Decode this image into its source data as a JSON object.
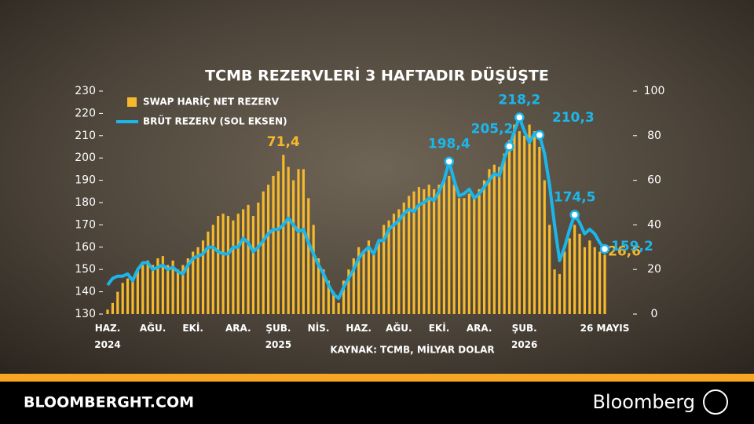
{
  "chart_data": {
    "type": "combo",
    "title": "TCMB REZERVLERİ 3 HAFTADIR DÜŞÜŞTE",
    "source": "KAYNAK: TCMB, MİLYAR DOLAR",
    "categories": [
      "HAZ.\n2024",
      null,
      null,
      null,
      null,
      null,
      null,
      null,
      null,
      "AĞU.",
      null,
      null,
      null,
      null,
      null,
      null,
      null,
      "EKİ.",
      null,
      null,
      null,
      null,
      null,
      null,
      null,
      null,
      "ARA.",
      null,
      null,
      null,
      null,
      null,
      null,
      null,
      "ŞUB.\n2025",
      null,
      null,
      null,
      null,
      null,
      null,
      null,
      "NİS.",
      null,
      null,
      null,
      null,
      null,
      null,
      null,
      "HAZ.",
      null,
      null,
      null,
      null,
      null,
      null,
      null,
      "AĞU.",
      null,
      null,
      null,
      null,
      null,
      null,
      null,
      "EKİ.",
      null,
      null,
      null,
      null,
      null,
      null,
      null,
      "ARA.",
      null,
      null,
      null,
      null,
      null,
      null,
      null,
      null,
      "ŞUB.\n2026",
      null,
      null,
      null,
      null,
      null,
      null,
      null,
      null,
      null,
      null,
      null,
      null,
      null,
      null,
      null,
      "26 MAYIS"
    ],
    "series": [
      {
        "name": "SWAP HARİÇ NET REZERV",
        "type": "bar",
        "axis": "y2",
        "color": "#f6b92c",
        "values": [
          2,
          5,
          10,
          14,
          16,
          15,
          20,
          22,
          24,
          22,
          25,
          26,
          22,
          24,
          20,
          22,
          25,
          28,
          30,
          33,
          37,
          40,
          44,
          45,
          44,
          42,
          45,
          47,
          49,
          44,
          50,
          55,
          58,
          62,
          64,
          71.4,
          66,
          60,
          65,
          65,
          52,
          40,
          25,
          20,
          15,
          10,
          5,
          15,
          20,
          25,
          30,
          28,
          33,
          28,
          32,
          40,
          42,
          45,
          47,
          50,
          53,
          55,
          57,
          56,
          58,
          56,
          58,
          60,
          62,
          58,
          52,
          52,
          54,
          52,
          56,
          60,
          65,
          67,
          66,
          72,
          78,
          85,
          82,
          80,
          85,
          82,
          75,
          60,
          40,
          20,
          18,
          28,
          34,
          40,
          36,
          30,
          33,
          30,
          28,
          26.6
        ],
        "value_labels": [
          null,
          null,
          null,
          null,
          null,
          null,
          null,
          null,
          null,
          null,
          null,
          null,
          null,
          null,
          null,
          null,
          null,
          null,
          null,
          null,
          null,
          null,
          null,
          null,
          null,
          null,
          null,
          null,
          null,
          null,
          null,
          null,
          null,
          null,
          null,
          "71,4",
          null,
          null,
          null,
          null,
          null,
          null,
          null,
          null,
          null,
          null,
          null,
          null,
          null,
          null,
          null,
          null,
          null,
          null,
          null,
          null,
          null,
          null,
          null,
          null,
          null,
          null,
          null,
          null,
          null,
          null,
          null,
          null,
          null,
          null,
          null,
          null,
          null,
          null,
          null,
          null,
          null,
          null,
          null,
          null,
          null,
          null,
          null,
          null,
          null,
          null,
          null,
          null,
          null,
          null,
          null,
          null,
          null,
          null,
          null,
          null,
          null,
          null,
          null,
          "26,6"
        ]
      },
      {
        "name": "BRÜT REZERV (SOL EKSEN)",
        "type": "line",
        "axis": "y",
        "color": "#1cb6ea",
        "values": [
          143,
          146,
          147,
          147,
          148,
          145,
          150,
          153,
          153,
          150,
          151,
          152,
          150,
          151,
          149,
          148,
          152,
          155,
          156,
          157,
          160,
          160,
          158,
          157,
          157,
          160,
          160,
          164,
          162,
          158,
          160,
          163,
          166,
          168,
          168,
          170,
          173,
          170,
          167,
          168,
          162,
          157,
          152,
          148,
          143,
          139,
          137,
          142,
          146,
          150,
          155,
          158,
          160,
          157,
          163,
          163,
          168,
          170,
          172,
          175,
          177,
          176,
          179,
          180,
          182,
          181,
          185,
          190,
          198.4,
          190,
          183,
          184,
          186,
          182,
          184,
          187,
          190,
          193,
          192,
          200,
          205.2,
          212,
          218.2,
          212,
          207,
          211,
          210.3,
          202,
          188,
          170,
          154,
          160,
          168,
          174.5,
          171,
          166,
          168,
          166,
          162,
          159.2
        ],
        "value_labels": [
          null,
          null,
          null,
          null,
          null,
          null,
          null,
          null,
          null,
          null,
          null,
          null,
          null,
          null,
          null,
          null,
          null,
          null,
          null,
          null,
          null,
          null,
          null,
          null,
          null,
          null,
          null,
          null,
          null,
          null,
          null,
          null,
          null,
          null,
          null,
          null,
          null,
          null,
          null,
          null,
          null,
          null,
          null,
          null,
          null,
          null,
          null,
          null,
          null,
          null,
          null,
          null,
          null,
          null,
          null,
          null,
          null,
          null,
          null,
          null,
          null,
          null,
          null,
          null,
          null,
          null,
          null,
          null,
          "198,4",
          null,
          null,
          null,
          null,
          null,
          null,
          null,
          null,
          null,
          null,
          null,
          "205,2",
          null,
          "218,2",
          null,
          null,
          null,
          "210,3",
          null,
          null,
          null,
          null,
          null,
          null,
          "174,5",
          null,
          null,
          null,
          null,
          null,
          "159,2"
        ]
      }
    ],
    "ylim": [
      130,
      230
    ],
    "yticks": [
      130,
      140,
      150,
      160,
      170,
      180,
      190,
      200,
      210,
      220,
      230
    ],
    "y2lim": [
      0,
      100
    ],
    "y2ticks": [
      0,
      20,
      40,
      60,
      80,
      100
    ],
    "footer_left": "BLOOMBERGHT.COM",
    "footer_right": "Bloomberg"
  }
}
